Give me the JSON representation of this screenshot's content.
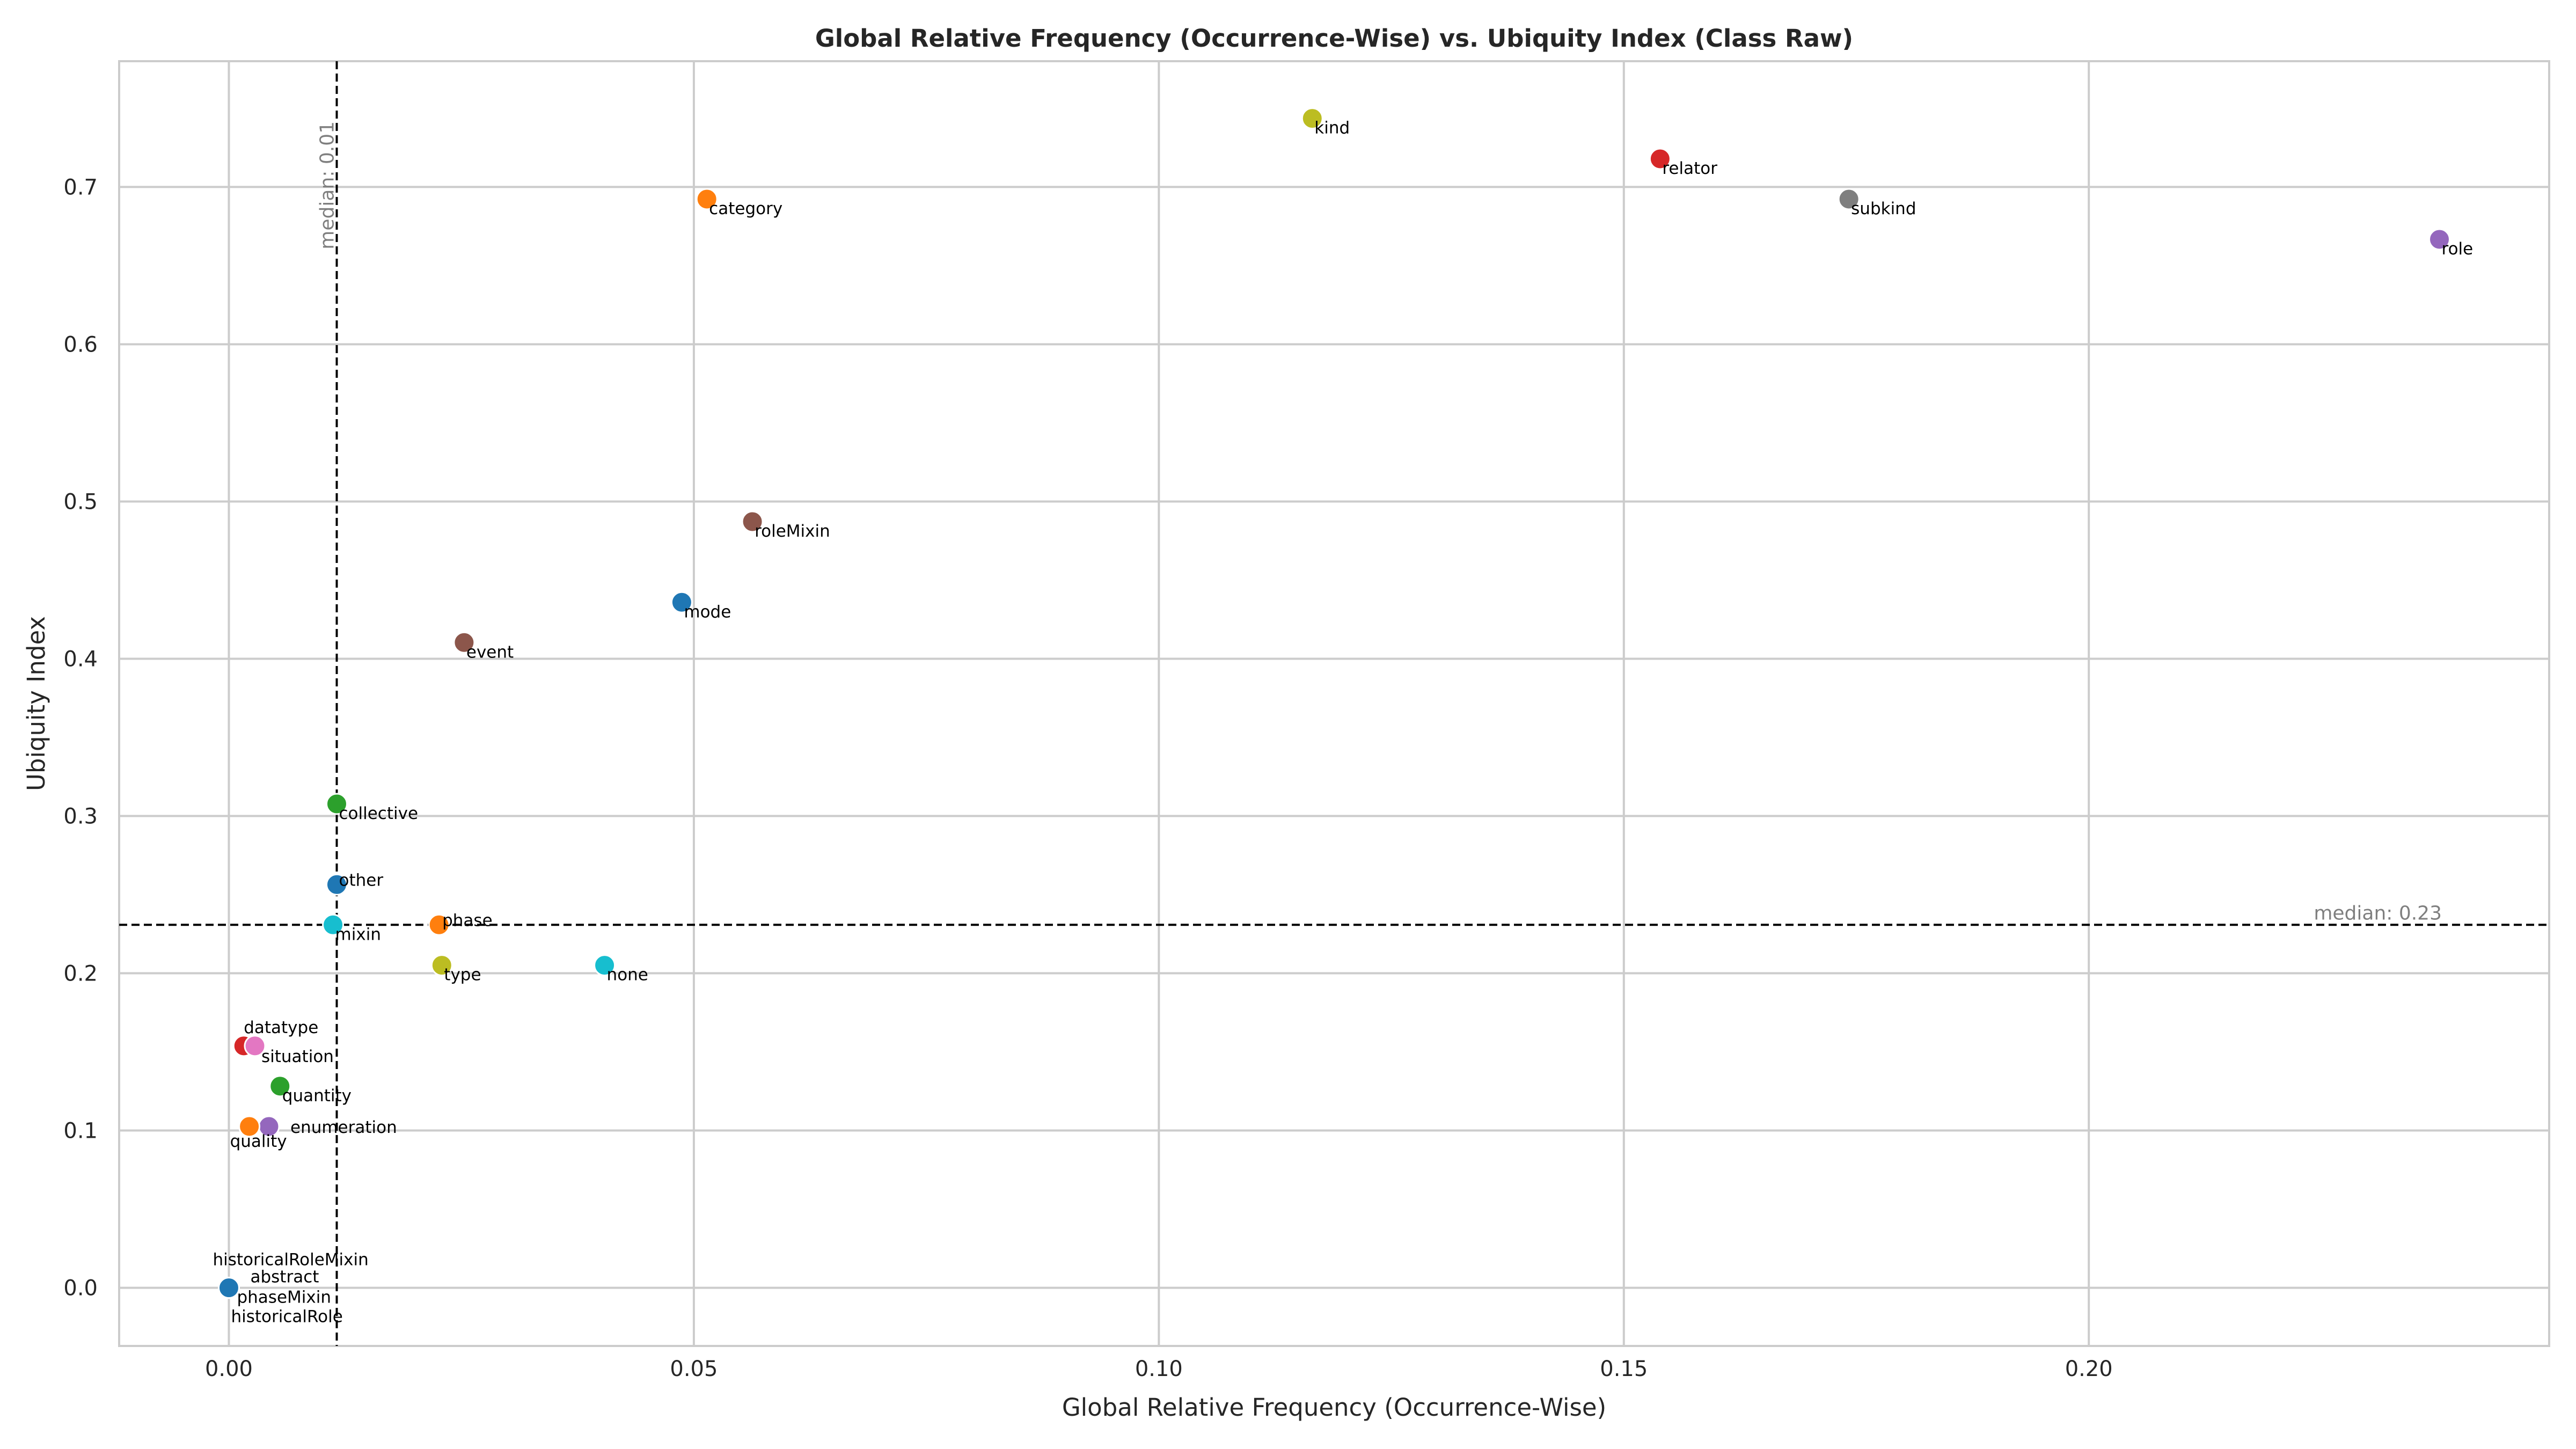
{
  "chart_data": {
    "type": "scatter",
    "title": "Global Relative Frequency (Occurrence-Wise) vs. Ubiquity Index (Class Raw)",
    "xlabel": "Global Relative Frequency (Occurrence-Wise)",
    "ylabel": "Ubiquity Index",
    "xlim": [
      -0.0118,
      0.2495
    ],
    "ylim": [
      -0.037,
      0.78
    ],
    "grid": true,
    "x_ticks": [
      {
        "value": 0.0,
        "label": "0.00"
      },
      {
        "value": 0.05,
        "label": "0.05"
      },
      {
        "value": 0.1,
        "label": "0.10"
      },
      {
        "value": 0.15,
        "label": "0.15"
      },
      {
        "value": 0.2,
        "label": "0.20"
      }
    ],
    "y_ticks": [
      {
        "value": 0.0,
        "label": "0.0"
      },
      {
        "value": 0.1,
        "label": "0.1"
      },
      {
        "value": 0.2,
        "label": "0.2"
      },
      {
        "value": 0.3,
        "label": "0.3"
      },
      {
        "value": 0.4,
        "label": "0.4"
      },
      {
        "value": 0.5,
        "label": "0.5"
      },
      {
        "value": 0.6,
        "label": "0.6"
      },
      {
        "value": 0.7,
        "label": "0.7"
      }
    ],
    "medians": {
      "x": {
        "value": 0.0116,
        "label": "median: 0.01"
      },
      "y": {
        "value": 0.2308,
        "label": "median: 0.23"
      }
    },
    "points": [
      {
        "label": "kind",
        "x": 0.1165,
        "y": 0.7436,
        "color": "#bcbd22"
      },
      {
        "label": "relator",
        "x": 0.1539,
        "y": 0.7179,
        "color": "#d62728"
      },
      {
        "label": "category",
        "x": 0.0514,
        "y": 0.6923,
        "color": "#ff7f0e"
      },
      {
        "label": "subkind",
        "x": 0.1742,
        "y": 0.6923,
        "color": "#7f7f7f"
      },
      {
        "label": "role",
        "x": 0.2377,
        "y": 0.6667,
        "color": "#9467bd"
      },
      {
        "label": "roleMixin",
        "x": 0.0563,
        "y": 0.4872,
        "color": "#8c564b"
      },
      {
        "label": "mode",
        "x": 0.0487,
        "y": 0.4359,
        "color": "#1f77b4"
      },
      {
        "label": "event",
        "x": 0.0253,
        "y": 0.4103,
        "color": "#8c564b"
      },
      {
        "label": "collective",
        "x": 0.0116,
        "y": 0.3077,
        "color": "#2ca02c"
      },
      {
        "label": "other",
        "x": 0.0116,
        "y": 0.2564,
        "color": "#1f77b4"
      },
      {
        "label": "phase",
        "x": 0.0226,
        "y": 0.2308,
        "color": "#ff7f0e"
      },
      {
        "label": "mixin",
        "x": 0.0112,
        "y": 0.2308,
        "color": "#17becf"
      },
      {
        "label": "type",
        "x": 0.0229,
        "y": 0.2051,
        "color": "#bcbd22"
      },
      {
        "label": "none",
        "x": 0.0404,
        "y": 0.2051,
        "color": "#17becf"
      },
      {
        "label": "datatype",
        "x": 0.0016,
        "y": 0.1538,
        "color": "#d62728"
      },
      {
        "label": "situation",
        "x": 0.0028,
        "y": 0.1538,
        "color": "#e377c2"
      },
      {
        "label": "quantity",
        "x": 0.0055,
        "y": 0.1282,
        "color": "#2ca02c"
      },
      {
        "label": "enumeration",
        "x": 0.0043,
        "y": 0.1026,
        "color": "#9467bd"
      },
      {
        "label": "quality",
        "x": 0.0022,
        "y": 0.1026,
        "color": "#ff7f0e"
      },
      {
        "label": "historicalRoleMixin",
        "x": 0.0,
        "y": 0.0,
        "color": "#1f77b4"
      },
      {
        "label": "abstract",
        "x": 0.0,
        "y": 0.0,
        "color": "#1f77b4"
      },
      {
        "label": "phaseMixin",
        "x": 0.0,
        "y": 0.0,
        "color": "#1f77b4"
      },
      {
        "label": "historicalRole",
        "x": 0.0,
        "y": 0.0,
        "color": "#1f77b4"
      }
    ]
  }
}
